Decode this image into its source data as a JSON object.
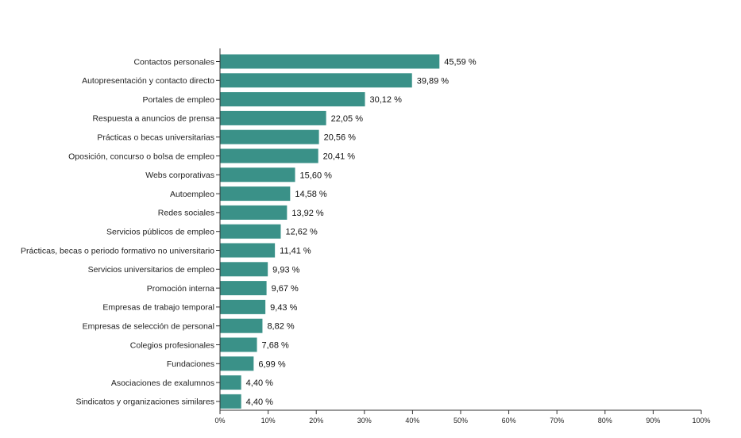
{
  "chart_data": {
    "type": "bar",
    "orientation": "horizontal",
    "categories": [
      "Contactos personales",
      "Autopresentación y contacto directo",
      "Portales de empleo",
      "Respuesta a anuncios de prensa",
      "Prácticas o becas universitarias",
      "Oposición, concurso o bolsa de empleo",
      "Webs corporativas",
      "Autoempleo",
      "Redes sociales",
      "Servicios públicos de empleo",
      "Prácticas, becas o periodo formativo no universitario",
      "Servicios universitarios de empleo",
      "Promoción interna",
      "Empresas de trabajo temporal",
      "Empresas de selección de personal",
      "Colegios profesionales",
      "Fundaciones",
      "Asociaciones de exalumnos",
      "Sindicatos y organizaciones similares"
    ],
    "values": [
      45.59,
      39.89,
      30.12,
      22.05,
      20.56,
      20.41,
      15.6,
      14.58,
      13.92,
      12.62,
      11.41,
      9.93,
      9.67,
      9.43,
      8.82,
      7.68,
      6.99,
      4.4,
      4.4
    ],
    "value_labels": [
      "45,59 %",
      "39,89 %",
      "30,12 %",
      "22,05 %",
      "20,56 %",
      "20,41 %",
      "15,60 %",
      "14,58 %",
      "13,92 %",
      "12,62 %",
      "11,41 %",
      "9,93 %",
      "9,67 %",
      "9,43 %",
      "8,82 %",
      "7,68 %",
      "6,99 %",
      "4,40 %",
      "4,40 %"
    ],
    "xlim": [
      0,
      100
    ],
    "x_ticks": [
      "0%",
      "10%",
      "20%",
      "30%",
      "40%",
      "50%",
      "60%",
      "70%",
      "80%",
      "90%",
      "100%"
    ],
    "grid": false,
    "bar_color": "#3a9188"
  }
}
